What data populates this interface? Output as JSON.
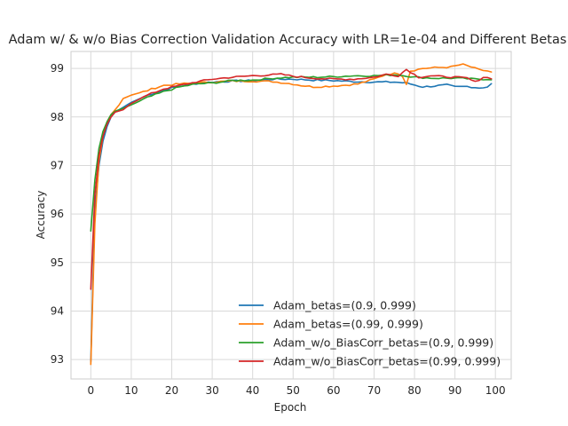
{
  "chart_data": {
    "type": "line",
    "title": "Adam w/ & w/o Bias Correction Validation Accuracy with LR=1e-04 and Different Betas",
    "xlabel": "Epoch",
    "ylabel": "Accuracy",
    "xlim": [
      -4.9,
      103.9
    ],
    "ylim": [
      92.6,
      99.35
    ],
    "xticks": [
      "0",
      "10",
      "20",
      "30",
      "40",
      "50",
      "60",
      "70",
      "80",
      "90",
      "100"
    ],
    "yticks": [
      "93",
      "94",
      "95",
      "96",
      "97",
      "98",
      "99"
    ],
    "grid": true,
    "legend_position": "lower-right",
    "series": [
      {
        "name": "Adam_betas=(0.9, 0.999)",
        "color": "#1f77b4",
        "keypoints": [
          [
            0,
            92.95
          ],
          [
            1,
            96.1
          ],
          [
            2,
            97.0
          ],
          [
            3,
            97.5
          ],
          [
            4,
            97.8
          ],
          [
            5,
            98.0
          ],
          [
            6,
            98.1
          ],
          [
            8,
            98.2
          ],
          [
            10,
            98.3
          ],
          [
            14,
            98.45
          ],
          [
            20,
            98.6
          ],
          [
            25,
            98.68
          ],
          [
            30,
            98.72
          ],
          [
            35,
            98.74
          ],
          [
            40,
            98.75
          ],
          [
            45,
            98.78
          ],
          [
            50,
            98.78
          ],
          [
            55,
            98.76
          ],
          [
            60,
            98.75
          ],
          [
            65,
            98.73
          ],
          [
            70,
            98.72
          ],
          [
            75,
            98.72
          ],
          [
            78,
            98.7
          ],
          [
            80,
            98.66
          ],
          [
            82,
            98.62
          ],
          [
            85,
            98.64
          ],
          [
            88,
            98.66
          ],
          [
            90,
            98.62
          ],
          [
            93,
            98.63
          ],
          [
            96,
            98.6
          ],
          [
            98,
            98.62
          ],
          [
            99,
            98.68
          ]
        ]
      },
      {
        "name": "Adam_betas=(0.99, 0.999)",
        "color": "#ff7f0e",
        "keypoints": [
          [
            0,
            92.9
          ],
          [
            1,
            95.8
          ],
          [
            2,
            97.1
          ],
          [
            3,
            97.6
          ],
          [
            4,
            97.9
          ],
          [
            5,
            98.05
          ],
          [
            6,
            98.15
          ],
          [
            7,
            98.25
          ],
          [
            8,
            98.38
          ],
          [
            10,
            98.45
          ],
          [
            13,
            98.52
          ],
          [
            16,
            98.6
          ],
          [
            18,
            98.65
          ],
          [
            22,
            98.68
          ],
          [
            30,
            98.72
          ],
          [
            35,
            98.74
          ],
          [
            40,
            98.74
          ],
          [
            45,
            98.73
          ],
          [
            50,
            98.68
          ],
          [
            52,
            98.65
          ],
          [
            55,
            98.62
          ],
          [
            58,
            98.63
          ],
          [
            62,
            98.65
          ],
          [
            66,
            98.68
          ],
          [
            70,
            98.78
          ],
          [
            73,
            98.88
          ],
          [
            76,
            98.9
          ],
          [
            77,
            98.85
          ],
          [
            78,
            98.68
          ],
          [
            79,
            98.95
          ],
          [
            82,
            99.0
          ],
          [
            86,
            99.02
          ],
          [
            89,
            99.03
          ],
          [
            91,
            99.07
          ],
          [
            92,
            99.08
          ],
          [
            94,
            99.03
          ],
          [
            96,
            98.97
          ],
          [
            98,
            98.95
          ],
          [
            99,
            98.92
          ]
        ]
      },
      {
        "name": "Adam_w/o_BiasCorr_betas=(0.9, 0.999)",
        "color": "#2ca02c",
        "keypoints": [
          [
            0,
            95.65
          ],
          [
            1,
            96.7
          ],
          [
            2,
            97.35
          ],
          [
            3,
            97.7
          ],
          [
            4,
            97.9
          ],
          [
            5,
            98.05
          ],
          [
            6,
            98.12
          ],
          [
            8,
            98.18
          ],
          [
            10,
            98.25
          ],
          [
            14,
            98.4
          ],
          [
            18,
            98.52
          ],
          [
            22,
            98.62
          ],
          [
            26,
            98.68
          ],
          [
            30,
            98.7
          ],
          [
            35,
            98.75
          ],
          [
            40,
            98.76
          ],
          [
            45,
            98.8
          ],
          [
            50,
            98.82
          ],
          [
            55,
            98.82
          ],
          [
            60,
            98.83
          ],
          [
            65,
            98.85
          ],
          [
            70,
            98.85
          ],
          [
            75,
            98.87
          ],
          [
            78,
            98.85
          ],
          [
            80,
            98.82
          ],
          [
            85,
            98.8
          ],
          [
            90,
            98.8
          ],
          [
            95,
            98.78
          ],
          [
            99,
            98.78
          ]
        ]
      },
      {
        "name": "Adam_w/o_BiasCorr_betas=(0.99, 0.999)",
        "color": "#d62728",
        "keypoints": [
          [
            0,
            94.45
          ],
          [
            1,
            96.4
          ],
          [
            2,
            97.2
          ],
          [
            3,
            97.6
          ],
          [
            4,
            97.85
          ],
          [
            5,
            98.0
          ],
          [
            6,
            98.1
          ],
          [
            8,
            98.15
          ],
          [
            10,
            98.28
          ],
          [
            14,
            98.45
          ],
          [
            18,
            98.58
          ],
          [
            22,
            98.65
          ],
          [
            26,
            98.72
          ],
          [
            30,
            98.78
          ],
          [
            35,
            98.82
          ],
          [
            40,
            98.85
          ],
          [
            45,
            98.87
          ],
          [
            47,
            98.88
          ],
          [
            50,
            98.84
          ],
          [
            55,
            98.8
          ],
          [
            60,
            98.78
          ],
          [
            65,
            98.78
          ],
          [
            70,
            98.82
          ],
          [
            73,
            98.88
          ],
          [
            76,
            98.85
          ],
          [
            78,
            98.98
          ],
          [
            79,
            98.93
          ],
          [
            81,
            98.82
          ],
          [
            84,
            98.85
          ],
          [
            87,
            98.83
          ],
          [
            90,
            98.82
          ],
          [
            93,
            98.8
          ],
          [
            95,
            98.72
          ],
          [
            97,
            98.82
          ],
          [
            99,
            98.8
          ]
        ]
      }
    ]
  }
}
